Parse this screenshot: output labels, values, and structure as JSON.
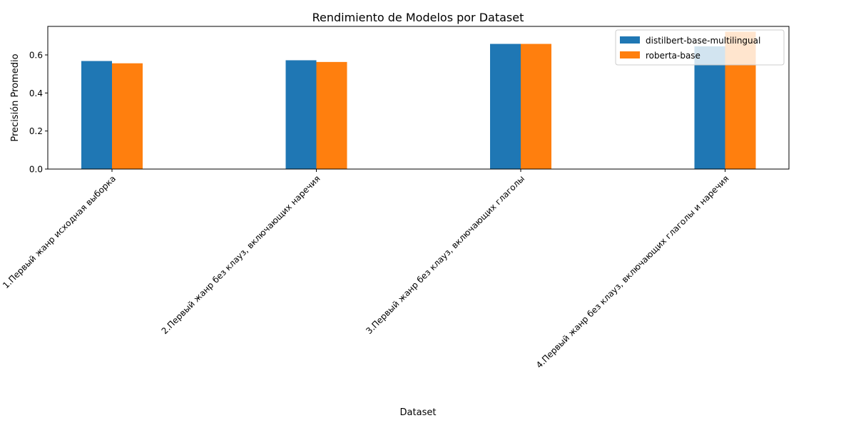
{
  "chart_data": {
    "type": "bar",
    "title": "Rendimiento de Modelos por Dataset",
    "xlabel": "Dataset",
    "ylabel": "Precisión Promedio",
    "ylim": [
      0,
      0.75
    ],
    "yticks": [
      "0.0",
      "0.2",
      "0.4",
      "0.6"
    ],
    "categories": [
      "1.Первый жанр исходная выборка",
      "2.Первый жанр без клауз, включающих наречия",
      "3.Первый жанр без клауз, включающих глаголы",
      "4.Первый жанр без клауз, включающих глаголы и наречия"
    ],
    "series": [
      {
        "name": "distilbert-base-multilingual",
        "color": "#1f77b4",
        "values": [
          0.568,
          0.572,
          0.658,
          0.645
        ]
      },
      {
        "name": "roberta-base",
        "color": "#ff7f0e",
        "values": [
          0.556,
          0.563,
          0.658,
          0.722
        ]
      }
    ],
    "legend_position": "top-right",
    "grid": false
  }
}
